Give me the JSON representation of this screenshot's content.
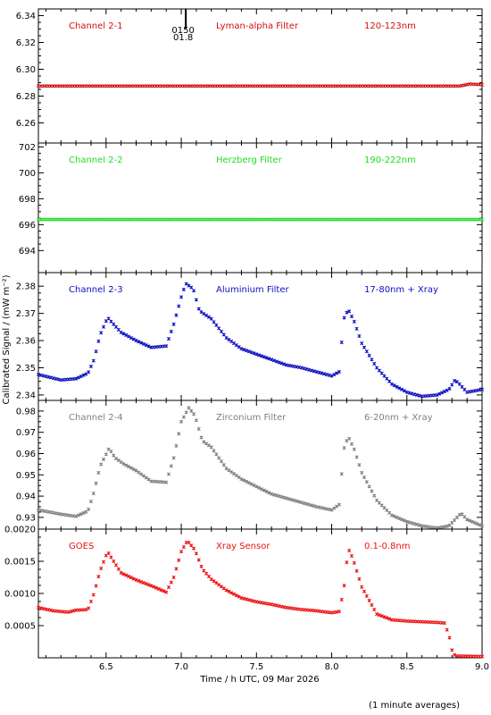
{
  "figure": {
    "ylabel": "Calibrated Signal / (mW m⁻²)",
    "xlabel": "Time / h UTC, 09 Mar 2026",
    "footnote": "(1 minute averages)",
    "xlim": [
      6.05,
      9.0
    ],
    "xticks": [
      6.5,
      7.0,
      7.5,
      8.0,
      8.5,
      9.0
    ],
    "xtick_labels": [
      "6.5",
      "7.0",
      "7.5",
      "8.0",
      "8.5",
      "9.0"
    ]
  },
  "chart_data": [
    {
      "type": "scatter",
      "panel_id": "ch21",
      "color": "#d01010",
      "labels": [
        "Channel 2-1",
        "Lyman-alpha Filter",
        "120-123nm"
      ],
      "ylim": [
        6.245,
        6.345
      ],
      "yticks": [
        6.26,
        6.28,
        6.3,
        6.32,
        6.34
      ],
      "ytick_labels": [
        "6.26",
        "6.28",
        "6.30",
        "6.32",
        "6.34"
      ],
      "marker_time": 7.03,
      "marker_labels": [
        "0150",
        "01.8"
      ],
      "points": [
        [
          6.05,
          6.2875
        ],
        [
          8.85,
          6.2875
        ],
        [
          8.92,
          6.289
        ],
        [
          9.0,
          6.2885
        ]
      ]
    },
    {
      "type": "scatter",
      "panel_id": "ch22",
      "color": "#22dd22",
      "labels": [
        "Channel 2-2",
        "Herzberg Filter",
        "190-222nm"
      ],
      "ylim": [
        692.3,
        702.3
      ],
      "yticks": [
        694,
        696,
        698,
        700,
        702
      ],
      "ytick_labels": [
        "694",
        "696",
        "698",
        "700",
        "702"
      ],
      "points": [
        [
          6.05,
          696.4
        ],
        [
          9.0,
          696.4
        ]
      ]
    },
    {
      "type": "scatter",
      "panel_id": "ch23",
      "color": "#1010c0",
      "labels": [
        "Channel 2-3",
        "Aluminium Filter",
        "17-80nm + Xray"
      ],
      "ylim": [
        2.338,
        2.385
      ],
      "yticks": [
        2.34,
        2.35,
        2.36,
        2.37,
        2.38
      ],
      "ytick_labels": [
        "2.34",
        "2.35",
        "2.36",
        "2.37",
        "2.38"
      ],
      "points": [
        [
          6.05,
          2.3475
        ],
        [
          6.2,
          2.3455
        ],
        [
          6.3,
          2.346
        ],
        [
          6.38,
          2.348
        ],
        [
          6.42,
          2.353
        ],
        [
          6.46,
          2.362
        ],
        [
          6.51,
          2.3685
        ],
        [
          6.55,
          2.366
        ],
        [
          6.6,
          2.363
        ],
        [
          6.7,
          2.36
        ],
        [
          6.8,
          2.3575
        ],
        [
          6.9,
          2.358
        ],
        [
          6.95,
          2.366
        ],
        [
          7.0,
          2.376
        ],
        [
          7.03,
          2.381
        ],
        [
          7.08,
          2.379
        ],
        [
          7.12,
          2.371
        ],
        [
          7.2,
          2.368
        ],
        [
          7.3,
          2.361
        ],
        [
          7.4,
          2.357
        ],
        [
          7.5,
          2.355
        ],
        [
          7.6,
          2.353
        ],
        [
          7.7,
          2.351
        ],
        [
          7.8,
          2.35
        ],
        [
          7.9,
          2.3485
        ],
        [
          8.0,
          2.347
        ],
        [
          8.05,
          2.3485
        ],
        [
          8.08,
          2.368
        ],
        [
          8.11,
          2.3715
        ],
        [
          8.15,
          2.367
        ],
        [
          8.2,
          2.359
        ],
        [
          8.3,
          2.35
        ],
        [
          8.4,
          2.344
        ],
        [
          8.5,
          2.341
        ],
        [
          8.6,
          2.3395
        ],
        [
          8.7,
          2.34
        ],
        [
          8.78,
          2.342
        ],
        [
          8.82,
          2.3455
        ],
        [
          8.85,
          2.344
        ],
        [
          8.9,
          2.341
        ],
        [
          9.0,
          2.342
        ]
      ]
    },
    {
      "type": "scatter",
      "panel_id": "ch24",
      "color": "#808080",
      "labels": [
        "Channel 2-4",
        "Zirconium Filter",
        "6-20nm + Xray"
      ],
      "ylim": [
        0.9245,
        0.985
      ],
      "yticks": [
        0.93,
        0.94,
        0.95,
        0.96,
        0.97,
        0.98
      ],
      "ytick_labels": [
        "0.93",
        "0.94",
        "0.95",
        "0.96",
        "0.97",
        "0.98"
      ],
      "points": [
        [
          6.05,
          0.9335
        ],
        [
          6.2,
          0.9315
        ],
        [
          6.3,
          0.9305
        ],
        [
          6.38,
          0.933
        ],
        [
          6.42,
          0.942
        ],
        [
          6.46,
          0.954
        ],
        [
          6.52,
          0.9625
        ],
        [
          6.56,
          0.958
        ],
        [
          6.62,
          0.955
        ],
        [
          6.7,
          0.952
        ],
        [
          6.8,
          0.947
        ],
        [
          6.9,
          0.9465
        ],
        [
          6.95,
          0.958
        ],
        [
          7.0,
          0.975
        ],
        [
          7.05,
          0.9815
        ],
        [
          7.09,
          0.978
        ],
        [
          7.14,
          0.966
        ],
        [
          7.2,
          0.963
        ],
        [
          7.3,
          0.953
        ],
        [
          7.4,
          0.948
        ],
        [
          7.5,
          0.9445
        ],
        [
          7.6,
          0.941
        ],
        [
          7.7,
          0.939
        ],
        [
          7.8,
          0.937
        ],
        [
          7.9,
          0.935
        ],
        [
          8.0,
          0.9335
        ],
        [
          8.05,
          0.936
        ],
        [
          8.08,
          0.962
        ],
        [
          8.11,
          0.968
        ],
        [
          8.15,
          0.962
        ],
        [
          8.2,
          0.951
        ],
        [
          8.3,
          0.938
        ],
        [
          8.4,
          0.931
        ],
        [
          8.5,
          0.928
        ],
        [
          8.6,
          0.926
        ],
        [
          8.7,
          0.925
        ],
        [
          8.78,
          0.926
        ],
        [
          8.82,
          0.929
        ],
        [
          8.86,
          0.932
        ],
        [
          8.9,
          0.929
        ],
        [
          9.0,
          0.926
        ]
      ]
    },
    {
      "type": "scatter",
      "panel_id": "goes",
      "color": "#ee1111",
      "labels": [
        "GOES",
        "Xray Sensor",
        "0.1-0.8nm"
      ],
      "ylim": [
        0.0,
        0.002
      ],
      "yticks": [
        0.0005,
        0.001,
        0.0015,
        0.002
      ],
      "ytick_labels": [
        "0.0005",
        "0.0010",
        "0.0015",
        "0.0020"
      ],
      "points": [
        [
          6.05,
          0.00078
        ],
        [
          6.15,
          0.00073
        ],
        [
          6.25,
          0.00071
        ],
        [
          6.3,
          0.00074
        ],
        [
          6.38,
          0.00075
        ],
        [
          6.42,
          0.001
        ],
        [
          6.46,
          0.00135
        ],
        [
          6.51,
          0.00165
        ],
        [
          6.55,
          0.0015
        ],
        [
          6.6,
          0.00132
        ],
        [
          6.7,
          0.00121
        ],
        [
          6.8,
          0.00112
        ],
        [
          6.9,
          0.00102
        ],
        [
          6.95,
          0.00125
        ],
        [
          7.0,
          0.00165
        ],
        [
          7.04,
          0.00182
        ],
        [
          7.09,
          0.00168
        ],
        [
          7.14,
          0.00138
        ],
        [
          7.2,
          0.00122
        ],
        [
          7.3,
          0.00105
        ],
        [
          7.4,
          0.00093
        ],
        [
          7.5,
          0.00087
        ],
        [
          7.6,
          0.00083
        ],
        [
          7.7,
          0.00078
        ],
        [
          7.8,
          0.00075
        ],
        [
          7.9,
          0.00073
        ],
        [
          8.0,
          0.0007
        ],
        [
          8.05,
          0.00072
        ],
        [
          8.08,
          0.00105
        ],
        [
          8.11,
          0.0017
        ],
        [
          8.14,
          0.00155
        ],
        [
          8.2,
          0.0011
        ],
        [
          8.3,
          0.00068
        ],
        [
          8.4,
          0.00059
        ],
        [
          8.5,
          0.00057
        ],
        [
          8.6,
          0.00056
        ],
        [
          8.7,
          0.00055
        ],
        [
          8.75,
          0.00054
        ],
        [
          8.78,
          0.00035
        ],
        [
          8.8,
          0.00012
        ],
        [
          8.82,
          3e-05
        ],
        [
          9.0,
          2e-05
        ]
      ]
    }
  ]
}
